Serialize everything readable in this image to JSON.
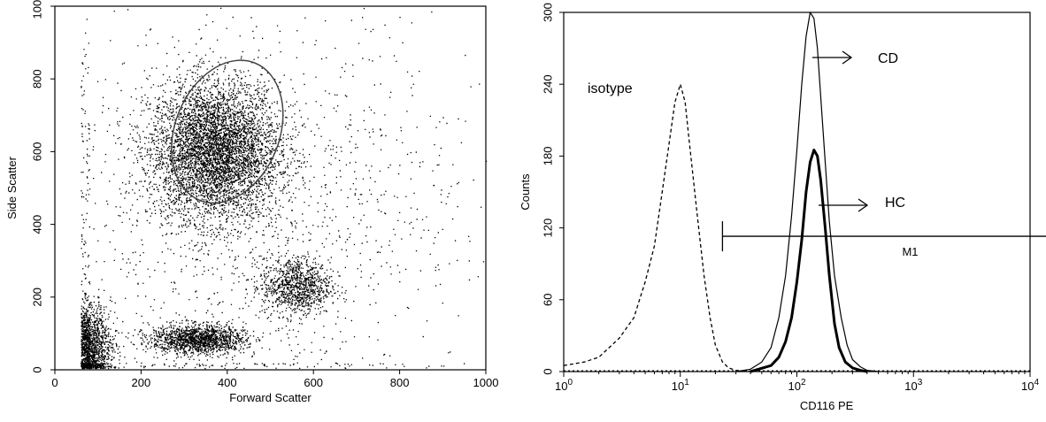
{
  "chart_data": [
    {
      "type": "scatter",
      "title": "",
      "xlabel": "Forward Scatter",
      "ylabel": "Side Scatter",
      "xlim": [
        0,
        1000
      ],
      "ylim": [
        0,
        1000
      ],
      "x_ticks": [
        0,
        200,
        400,
        600,
        800,
        1000
      ],
      "y_ticks": [
        0,
        200,
        400,
        600,
        800,
        1000
      ],
      "grid": false,
      "populations": [
        {
          "center": [
            370,
            600
          ],
          "spread": [
            75,
            95
          ],
          "count": 5200
        },
        {
          "center": [
            330,
            85
          ],
          "spread": [
            55,
            20
          ],
          "count": 1500
        },
        {
          "center": [
            560,
            230
          ],
          "spread": [
            40,
            40
          ],
          "count": 1000
        },
        {
          "center": [
            80,
            70
          ],
          "spread": [
            25,
            55
          ],
          "count": 1400
        },
        {
          "center": [
            450,
            450
          ],
          "spread": [
            260,
            300
          ],
          "count": 1400
        }
      ],
      "gate": {
        "shape": "ellipse",
        "center": [
          400,
          655
        ],
        "radius": [
          220,
          370
        ],
        "rotation_deg": 22
      }
    },
    {
      "type": "line",
      "title": "",
      "xlabel": "CD116 PE",
      "ylabel": "Counts",
      "x_scale": "log",
      "xlim": [
        1,
        10000
      ],
      "ylim": [
        0,
        300
      ],
      "x_ticks": [
        {
          "base": "10",
          "exp": "0"
        },
        {
          "base": "10",
          "exp": "1"
        },
        {
          "base": "10",
          "exp": "2"
        },
        {
          "base": "10",
          "exp": "3"
        },
        {
          "base": "10",
          "exp": "4"
        }
      ],
      "y_ticks": [
        0,
        60,
        120,
        180,
        240,
        300
      ],
      "grid": false,
      "series": [
        {
          "name": "isotype",
          "style": "dashed",
          "x": [
            1,
            1.5,
            2,
            3,
            4,
            5,
            6,
            7,
            8,
            9,
            10,
            11,
            12,
            14,
            16,
            18,
            20,
            23,
            26,
            30,
            40
          ],
          "y": [
            5,
            8,
            12,
            28,
            45,
            75,
            105,
            150,
            190,
            225,
            240,
            225,
            190,
            130,
            80,
            45,
            22,
            8,
            3,
            1,
            0
          ]
        },
        {
          "name": "CD",
          "style": "thin",
          "x": [
            30,
            40,
            50,
            60,
            70,
            80,
            90,
            100,
            110,
            120,
            130,
            140,
            150,
            160,
            175,
            190,
            210,
            240,
            270,
            300,
            350,
            400,
            500
          ],
          "y": [
            0,
            2,
            8,
            20,
            45,
            80,
            130,
            185,
            240,
            280,
            300,
            295,
            270,
            230,
            175,
            125,
            80,
            45,
            22,
            10,
            4,
            1,
            0
          ]
        },
        {
          "name": "HC",
          "style": "thick",
          "x": [
            40,
            60,
            70,
            80,
            90,
            100,
            110,
            120,
            130,
            140,
            150,
            160,
            175,
            190,
            210,
            230,
            260,
            300,
            350,
            400
          ],
          "y": [
            0,
            5,
            12,
            25,
            45,
            75,
            110,
            150,
            175,
            185,
            180,
            160,
            120,
            80,
            40,
            20,
            8,
            3,
            1,
            0
          ]
        }
      ],
      "marker": {
        "label": "M1",
        "x_start": 23,
        "x_end": 10000,
        "y": 113
      },
      "annotations": [
        {
          "text": "isotype"
        },
        {
          "text": "CD"
        },
        {
          "text": "HC"
        }
      ]
    }
  ]
}
